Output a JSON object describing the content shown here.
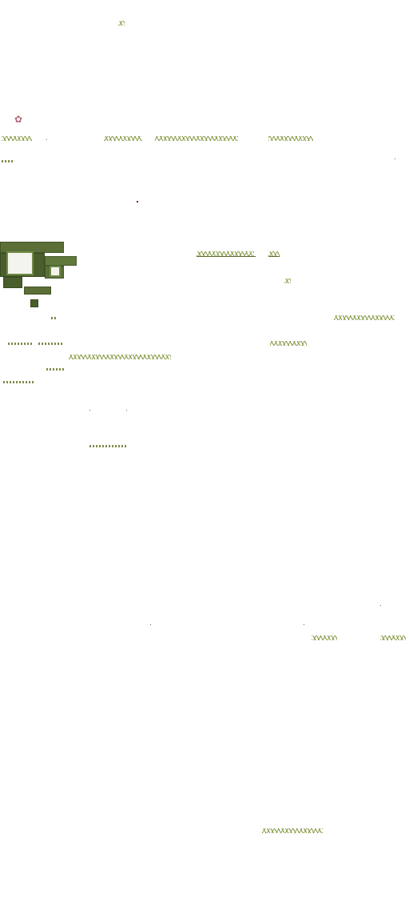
{
  "sheet": {
    "background": "#ffffff",
    "grass_color": "#5b6e37",
    "grass_dark_color": "#4a5d2c",
    "tuft_color": "#6f8a2c",
    "flower_color": "#b46b78",
    "speck_color": "#8b2233"
  },
  "icons": {
    "flower": "flower-sprite",
    "grass": "grass-tuft-sprite"
  }
}
